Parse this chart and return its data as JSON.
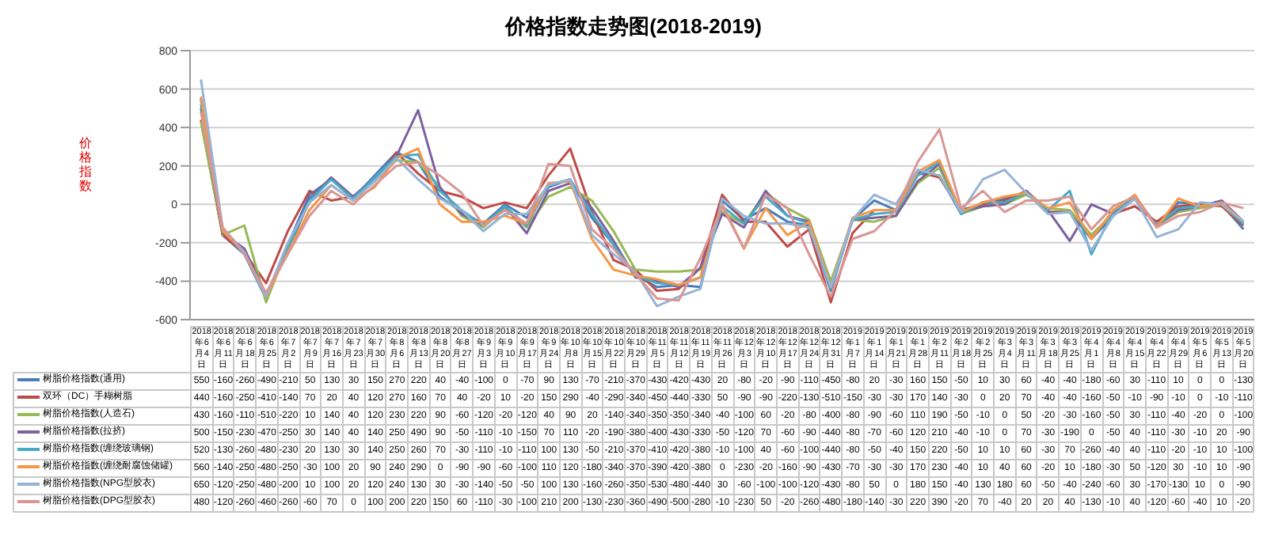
{
  "chart_data": {
    "type": "line",
    "title": "价格指数走势图(2018-2019)",
    "ylabel": "价格指数",
    "categories": [
      "2018年6月4日",
      "2018年6月11日",
      "2018年6月18日",
      "2018年6月25日",
      "2018年7月2日",
      "2018年7月9日",
      "2018年7月16日",
      "2018年7月23日",
      "2018年7月30日",
      "2018年8月6日",
      "2018年8月13日",
      "2018年8月20日",
      "2018年8月27日",
      "2018年9月3日",
      "2018年9月10日",
      "2018年9月17日",
      "2018年9月24日",
      "2018年10月8日",
      "2018年10月15日",
      "2018年10月22日",
      "2018年10月29日",
      "2018年11月5日",
      "2018年11月12日",
      "2018年11月19日",
      "2018年11月26日",
      "2018年12月3日",
      "2018年12月10日",
      "2018年12月17日",
      "2018年12月24日",
      "2018年12月31日",
      "2019年1月7日",
      "2019年1月14日",
      "2019年1月21日",
      "2019年1月28日",
      "2019年2月11日",
      "2019年2月18日",
      "2019年2月25日",
      "2019年3月4日",
      "2019年3月11日",
      "2019年3月18日",
      "2019年3月25日",
      "2019年4月1日",
      "2019年4月8日",
      "2019年4月15日",
      "2019年4月22日",
      "2019年4月29日",
      "2019年5月6日",
      "2019年5月13日",
      "2019年5月20日"
    ],
    "series": [
      {
        "name": "树脂价格指数(通用)",
        "color": "#4a7ebb",
        "values": [
          550,
          -160,
          -260,
          -490,
          -210,
          50,
          130,
          30,
          150,
          270,
          220,
          40,
          -40,
          -100,
          0,
          -70,
          90,
          130,
          -70,
          -210,
          -370,
          -430,
          -420,
          -430,
          20,
          -80,
          -20,
          -90,
          -110,
          -450,
          -80,
          20,
          -30,
          160,
          150,
          -50,
          10,
          30,
          60,
          -40,
          -40,
          -180,
          -60,
          30,
          -110,
          10,
          0,
          0,
          -130
        ]
      },
      {
        "name": "双环（DC）手糊树脂",
        "color": "#be4b48",
        "values": [
          440,
          -160,
          -250,
          -410,
          -140,
          70,
          20,
          40,
          120,
          270,
          160,
          70,
          40,
          -20,
          10,
          -20,
          150,
          290,
          -40,
          -290,
          -340,
          -450,
          -440,
          -330,
          50,
          -90,
          -90,
          -220,
          -130,
          -510,
          -150,
          -30,
          -30,
          170,
          140,
          -30,
          0,
          20,
          70,
          -40,
          -40,
          -160,
          -50,
          -10,
          -90,
          -10,
          0,
          -10,
          -110
        ]
      },
      {
        "name": "树脂价格指数(人造石)",
        "color": "#98b954",
        "values": [
          430,
          -160,
          -110,
          -510,
          -220,
          10,
          140,
          40,
          120,
          230,
          220,
          90,
          -60,
          -120,
          -20,
          -120,
          40,
          90,
          20,
          -140,
          -340,
          -350,
          -350,
          -340,
          -40,
          -100,
          60,
          -20,
          -80,
          -400,
          -80,
          -90,
          -60,
          110,
          190,
          -50,
          -10,
          0,
          50,
          -20,
          -30,
          -160,
          -50,
          30,
          -110,
          -40,
          -20,
          0,
          -100
        ]
      },
      {
        "name": "树脂价格指数(拉挤)",
        "color": "#7d60a0",
        "values": [
          500,
          -150,
          -230,
          -470,
          -250,
          30,
          140,
          40,
          140,
          250,
          490,
          90,
          -50,
          -110,
          -10,
          -150,
          70,
          110,
          -20,
          -190,
          -380,
          -400,
          -430,
          -330,
          -50,
          -120,
          70,
          -60,
          -90,
          -440,
          -80,
          -70,
          -60,
          120,
          210,
          -40,
          -10,
          0,
          70,
          -30,
          -190,
          0,
          -50,
          40,
          -110,
          -30,
          -10,
          20,
          -90
        ]
      },
      {
        "name": "树脂价格指数(缠绕玻璃钢)",
        "color": "#46aac5",
        "values": [
          520,
          -130,
          -260,
          -480,
          -230,
          20,
          130,
          30,
          140,
          250,
          260,
          70,
          -30,
          -110,
          -10,
          -110,
          100,
          130,
          -50,
          -210,
          -370,
          -410,
          -420,
          -380,
          -10,
          -100,
          40,
          -60,
          -100,
          -440,
          -80,
          -50,
          -40,
          150,
          220,
          -50,
          10,
          10,
          60,
          -30,
          70,
          -260,
          -40,
          40,
          -110,
          -20,
          -10,
          10,
          -100
        ]
      },
      {
        "name": "树脂价格指数(缠绕耐腐蚀储罐)",
        "color": "#f79646",
        "values": [
          560,
          -140,
          -250,
          -480,
          -250,
          -30,
          100,
          20,
          90,
          240,
          290,
          0,
          -90,
          -90,
          -60,
          -100,
          110,
          120,
          -180,
          -340,
          -370,
          -390,
          -420,
          -380,
          0,
          -230,
          -20,
          -160,
          -90,
          -430,
          -70,
          -30,
          -30,
          170,
          230,
          -40,
          10,
          40,
          60,
          -20,
          10,
          -180,
          -30,
          50,
          -120,
          30,
          -10,
          10,
          -90
        ]
      },
      {
        "name": "树脂价格指数(NPG型胶衣)",
        "color": "#95b3d7",
        "values": [
          650,
          -120,
          -250,
          -480,
          -200,
          10,
          100,
          20,
          120,
          240,
          130,
          30,
          -30,
          -140,
          -50,
          -50,
          100,
          130,
          -160,
          -260,
          -350,
          -530,
          -480,
          -440,
          30,
          -60,
          -100,
          -100,
          -120,
          -430,
          -80,
          50,
          0,
          180,
          150,
          -40,
          130,
          180,
          60,
          -50,
          -40,
          -240,
          -60,
          30,
          -170,
          -130,
          10,
          0,
          -90
        ]
      },
      {
        "name": "树脂价格指数(DPG型胶衣)",
        "color": "#d99694",
        "values": [
          480,
          -120,
          -260,
          -460,
          -260,
          -60,
          70,
          0,
          100,
          200,
          220,
          150,
          60,
          -110,
          -30,
          -100,
          210,
          200,
          -130,
          -230,
          -360,
          -490,
          -500,
          -280,
          -10,
          -230,
          50,
          -20,
          -260,
          -480,
          -180,
          -140,
          -30,
          220,
          390,
          -20,
          70,
          -40,
          20,
          20,
          40,
          -130,
          -10,
          40,
          -120,
          -60,
          -40,
          10,
          -20
        ]
      }
    ],
    "ylim": [
      -600,
      800
    ],
    "yticks": [
      -600,
      -400,
      -200,
      0,
      200,
      400,
      600,
      800
    ],
    "grid": "y",
    "legend": "bottom",
    "data_labels": true,
    "marker": "none",
    "line_style": "solid"
  }
}
